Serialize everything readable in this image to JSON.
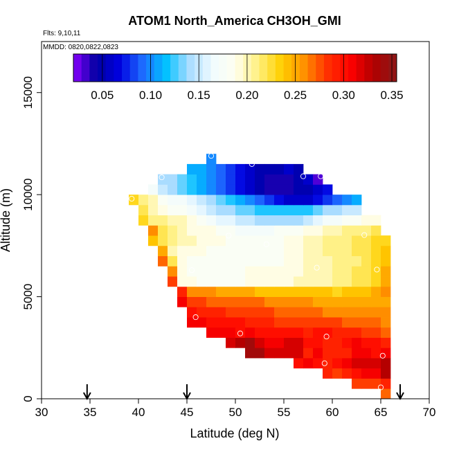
{
  "chart_data": {
    "type": "heatmap",
    "title": "ATOM1 North_America CH3OH_GMI",
    "subtitle_lines": [
      "Flts: 9,10,11",
      "MMDD: 0820,0822,0823"
    ],
    "xlabel": "Latitude (deg N)",
    "ylabel": "Altitude (m)",
    "xlim": [
      30,
      70
    ],
    "ylim": [
      0,
      17500
    ],
    "x_ticks": [
      30,
      35,
      40,
      45,
      50,
      55,
      60,
      65,
      70
    ],
    "y_ticks": [
      0,
      5000,
      10000,
      15000
    ],
    "colorbar": {
      "range": [
        0.02,
        0.355
      ],
      "ticks": [
        0.05,
        0.1,
        0.15,
        0.2,
        0.25,
        0.3,
        0.35
      ],
      "tick_labels": [
        "0.05",
        "0.10",
        "0.15",
        "0.20",
        "0.25",
        "0.30",
        "0.35"
      ],
      "colors": [
        "#8a00ff",
        "#0000a0",
        "#0000e0",
        "#1e6cff",
        "#00c0ff",
        "#a8dcff",
        "#f0fbff",
        "#fffff0",
        "#fff080",
        "#ffd000",
        "#ff9000",
        "#ff3000",
        "#ff0000",
        "#b00000",
        "#8a1a1a"
      ]
    },
    "cell_size": {
      "lat": 1,
      "alt": 500
    },
    "rows": [
      {
        "alt": 500,
        "lat_start": 65,
        "values": [
          0.27
        ]
      },
      {
        "alt": 1000,
        "lat_start": 62,
        "values": [
          0.28,
          0.28,
          0.28,
          0.29
        ]
      },
      {
        "alt": 1500,
        "lat_start": 59,
        "values": [
          0.29,
          0.28,
          0.29,
          0.3,
          0.31,
          0.31,
          0.33
        ]
      },
      {
        "alt": 2000,
        "lat_start": 56,
        "values": [
          0.3,
          0.31,
          0.3,
          0.29,
          0.3,
          0.31,
          0.32,
          0.32,
          0.32,
          0.33
        ]
      },
      {
        "alt": 2500,
        "lat_start": 51,
        "values": [
          0.34,
          0.34,
          0.32,
          0.32,
          0.32,
          0.32,
          0.29,
          0.31,
          0.29,
          0.29,
          0.29,
          0.31,
          0.31,
          0.3,
          0.31
        ]
      },
      {
        "alt": 3000,
        "lat_start": 49,
        "values": [
          0.32,
          0.33,
          0.34,
          0.32,
          0.31,
          0.31,
          0.32,
          0.32,
          0.3,
          0.3,
          0.29,
          0.29,
          0.3,
          0.31,
          0.3,
          0.3,
          0.29
        ]
      },
      {
        "alt": 3500,
        "lat_start": 47,
        "values": [
          0.31,
          0.31,
          0.31,
          0.3,
          0.31,
          0.3,
          0.3,
          0.3,
          0.3,
          0.3,
          0.29,
          0.3,
          0.3,
          0.29,
          0.29,
          0.29,
          0.28,
          0.28,
          0.27
        ]
      },
      {
        "alt": 4000,
        "lat_start": 45,
        "values": [
          0.31,
          0.31,
          0.3,
          0.3,
          0.3,
          0.3,
          0.29,
          0.29,
          0.29,
          0.28,
          0.28,
          0.28,
          0.28,
          0.28,
          0.28,
          0.28,
          0.27,
          0.27,
          0.27,
          0.27,
          0.26
        ]
      },
      {
        "alt": 4500,
        "lat_start": 45,
        "values": [
          0.3,
          0.29,
          0.29,
          0.29,
          0.28,
          0.28,
          0.28,
          0.28,
          0.28,
          0.27,
          0.27,
          0.27,
          0.27,
          0.27,
          0.26,
          0.26,
          0.26,
          0.26,
          0.26,
          0.26,
          0.26
        ]
      },
      {
        "alt": 5000,
        "lat_start": 44,
        "values": [
          0.31,
          0.28,
          0.28,
          0.27,
          0.27,
          0.27,
          0.27,
          0.27,
          0.27,
          0.26,
          0.26,
          0.26,
          0.26,
          0.26,
          0.25,
          0.25,
          0.25,
          0.25,
          0.25,
          0.25,
          0.25,
          0.25
        ]
      },
      {
        "alt": 5500,
        "lat_start": 44,
        "values": [
          0.29,
          0.26,
          0.26,
          0.26,
          0.25,
          0.25,
          0.25,
          0.25,
          0.24,
          0.24,
          0.24,
          0.24,
          0.24,
          0.24,
          0.24,
          0.24,
          0.23,
          0.24,
          0.24,
          0.24,
          0.25,
          0.26
        ]
      },
      {
        "alt": 6000,
        "lat_start": 43,
        "values": [
          0.28,
          0.19,
          0.19,
          0.18,
          0.18,
          0.18,
          0.18,
          0.18,
          0.19,
          0.19,
          0.19,
          0.19,
          0.19,
          0.2,
          0.2,
          0.2,
          0.2,
          0.21,
          0.21,
          0.22,
          0.22,
          0.23,
          0.25
        ]
      },
      {
        "alt": 6500,
        "lat_start": 43,
        "values": [
          0.26,
          0.19,
          0.18,
          0.18,
          0.18,
          0.18,
          0.18,
          0.18,
          0.19,
          0.19,
          0.19,
          0.19,
          0.19,
          0.19,
          0.2,
          0.2,
          0.2,
          0.21,
          0.21,
          0.22,
          0.22,
          0.23,
          0.25
        ]
      },
      {
        "alt": 7000,
        "lat_start": 42,
        "values": [
          0.27,
          0.22,
          0.19,
          0.18,
          0.18,
          0.18,
          0.18,
          0.18,
          0.18,
          0.18,
          0.18,
          0.18,
          0.18,
          0.19,
          0.19,
          0.2,
          0.2,
          0.2,
          0.21,
          0.21,
          0.21,
          0.22,
          0.23,
          0.24
        ]
      },
      {
        "alt": 7500,
        "lat_start": 42,
        "values": [
          0.25,
          0.2,
          0.19,
          0.19,
          0.19,
          0.18,
          0.18,
          0.18,
          0.18,
          0.18,
          0.18,
          0.18,
          0.18,
          0.19,
          0.19,
          0.2,
          0.2,
          0.21,
          0.21,
          0.21,
          0.22,
          0.22,
          0.23,
          0.24
        ]
      },
      {
        "alt": 8000,
        "lat_start": 41,
        "values": [
          0.24,
          0.22,
          0.21,
          0.2,
          0.2,
          0.19,
          0.19,
          0.19,
          0.18,
          0.18,
          0.18,
          0.18,
          0.18,
          0.18,
          0.19,
          0.19,
          0.2,
          0.2,
          0.21,
          0.21,
          0.21,
          0.22,
          0.22,
          0.23,
          0.23
        ]
      },
      {
        "alt": 8500,
        "lat_start": 41,
        "values": [
          0.26,
          0.22,
          0.21,
          0.2,
          0.19,
          0.19,
          0.19,
          0.18,
          0.18,
          0.17,
          0.17,
          0.17,
          0.17,
          0.18,
          0.18,
          0.18,
          0.19,
          0.19,
          0.2,
          0.2,
          0.21,
          0.21,
          0.21,
          0.22
        ]
      },
      {
        "alt": 9000,
        "lat_start": 40,
        "values": [
          0.23,
          0.21,
          0.21,
          0.2,
          0.2,
          0.19,
          0.18,
          0.17,
          0.16,
          0.16,
          0.15,
          0.15,
          0.14,
          0.14,
          0.14,
          0.14,
          0.14,
          0.15,
          0.16,
          0.17,
          0.17,
          0.18,
          0.18,
          0.19,
          0.19
        ]
      },
      {
        "alt": 9500,
        "lat_start": 40,
        "values": [
          0.22,
          0.2,
          0.19,
          0.18,
          0.18,
          0.17,
          0.16,
          0.15,
          0.14,
          0.14,
          0.13,
          0.13,
          0.12,
          0.12,
          0.12,
          0.12,
          0.12,
          0.12,
          0.13,
          0.14,
          0.14,
          0.15,
          0.15
        ]
      },
      {
        "alt": 10000,
        "lat_start": 39,
        "values": [
          0.23,
          0.21,
          0.2,
          0.18,
          0.17,
          0.17,
          0.16,
          0.15,
          0.14,
          0.13,
          0.12,
          0.11,
          0.1,
          0.09,
          0.08,
          0.07,
          0.06,
          0.06,
          0.06,
          0.07,
          0.08,
          0.09,
          0.1,
          0.11
        ]
      },
      {
        "alt": 10500,
        "lat_start": 41,
        "values": [
          0.17,
          0.15,
          0.14,
          0.13,
          0.12,
          0.11,
          0.1,
          0.09,
          0.08,
          0.07,
          0.06,
          0.05,
          0.04,
          0.04,
          0.04,
          0.05,
          0.05,
          0.06,
          0.07
        ]
      },
      {
        "alt": 11000,
        "lat_start": 42,
        "values": [
          0.14,
          0.14,
          0.13,
          0.12,
          0.11,
          0.1,
          0.09,
          0.08,
          0.07,
          0.06,
          0.05,
          0.04,
          0.04,
          0.04,
          0.05,
          0.06,
          0.03
        ]
      },
      {
        "alt": 11500,
        "lat_start": 45,
        "values": [
          0.11,
          0.11,
          0.1,
          0.09,
          0.08,
          0.07,
          0.06,
          0.05,
          0.05,
          0.05,
          0.06,
          0.05
        ]
      },
      {
        "alt": 12000,
        "lat_start": 47,
        "values": [
          0.1
        ]
      }
    ],
    "markers": [
      {
        "lat": 47.5,
        "alt": 11900
      },
      {
        "lat": 51.7,
        "alt": 11500
      },
      {
        "lat": 42.4,
        "alt": 10850
      },
      {
        "lat": 57.0,
        "alt": 10900
      },
      {
        "lat": 58.8,
        "alt": 10900
      },
      {
        "lat": 39.3,
        "alt": 9800
      },
      {
        "lat": 49.3,
        "alt": 7990
      },
      {
        "lat": 53.2,
        "alt": 7570
      },
      {
        "lat": 63.3,
        "alt": 8020
      },
      {
        "lat": 58.4,
        "alt": 6420
      },
      {
        "lat": 64.6,
        "alt": 6330
      },
      {
        "lat": 45.5,
        "alt": 6300
      },
      {
        "lat": 45.9,
        "alt": 4000
      },
      {
        "lat": 50.5,
        "alt": 3200
      },
      {
        "lat": 59.4,
        "alt": 3050
      },
      {
        "lat": 59.2,
        "alt": 1740
      },
      {
        "lat": 65.2,
        "alt": 2110
      },
      {
        "lat": 65.0,
        "alt": 560
      }
    ],
    "arrows_lat": [
      34.7,
      45.0,
      67.0
    ]
  }
}
